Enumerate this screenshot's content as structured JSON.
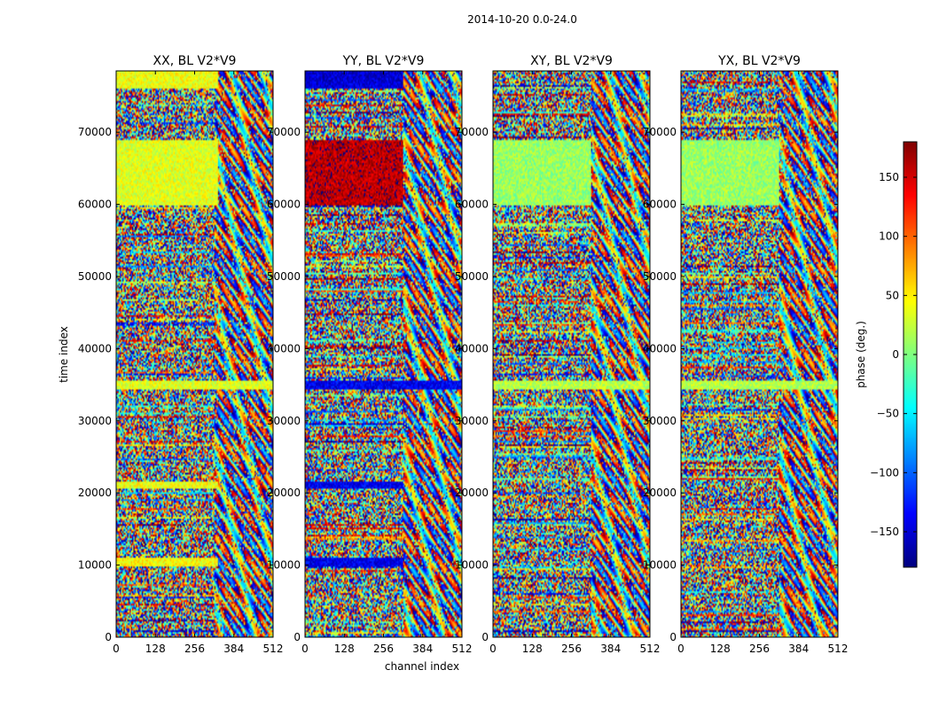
{
  "chart_data": {
    "type": "heatmap",
    "suptitle": "2014-10-20 0.0-24.0",
    "xlabel": "channel index",
    "ylabel": "time index",
    "xlim": [
      0,
      512
    ],
    "ylim": [
      0,
      78500
    ],
    "xticks": [
      0,
      128,
      256,
      384,
      512
    ],
    "yticks": [
      0,
      10000,
      20000,
      30000,
      40000,
      50000,
      60000,
      70000
    ],
    "panels": [
      {
        "title": "XX, BL V2*V9",
        "coherent_bands": [
          {
            "t0": 9800,
            "t1": 11000,
            "phase": 45,
            "ch_max": 330
          },
          {
            "t0": 20500,
            "t1": 21500,
            "phase": 40,
            "ch_max": 330
          },
          {
            "t0": 34300,
            "t1": 35600,
            "phase": 35,
            "ch_max": 512
          },
          {
            "t0": 59800,
            "t1": 69000,
            "phase": 35,
            "ch_max": 330
          },
          {
            "t0": 76000,
            "t1": 78500,
            "phase": 40,
            "ch_max": 330
          }
        ]
      },
      {
        "title": "YY, BL V2*V9",
        "coherent_bands": [
          {
            "t0": 9800,
            "t1": 11000,
            "phase": -140,
            "ch_max": 320
          },
          {
            "t0": 20500,
            "t1": 21500,
            "phase": -140,
            "ch_max": 320
          },
          {
            "t0": 34300,
            "t1": 35600,
            "phase": -140,
            "ch_max": 512
          },
          {
            "t0": 59800,
            "t1": 69000,
            "phase": 160,
            "ch_max": 320
          },
          {
            "t0": 76000,
            "t1": 78500,
            "phase": -150,
            "ch_max": 320
          }
        ]
      },
      {
        "title": "XY, BL V2*V9",
        "coherent_bands": [
          {
            "t0": 34300,
            "t1": 35600,
            "phase": 20,
            "ch_max": 512
          },
          {
            "t0": 59800,
            "t1": 69000,
            "phase": 10,
            "ch_max": 320
          }
        ]
      },
      {
        "title": "YX, BL V2*V9",
        "coherent_bands": [
          {
            "t0": 34300,
            "t1": 35600,
            "phase": 20,
            "ch_max": 512
          },
          {
            "t0": 59800,
            "t1": 69000,
            "phase": 10,
            "ch_max": 320
          }
        ]
      }
    ],
    "colorbar": {
      "label": "phase (deg.)",
      "range": [
        -180,
        180
      ],
      "ticks": [
        -150,
        -100,
        -50,
        0,
        50,
        100,
        150
      ],
      "tick_labels": [
        "−150",
        "−100",
        "−50",
        "0",
        "50",
        "100",
        "150"
      ],
      "colormap": [
        "#00007f",
        "#0000ff",
        "#007fff",
        "#00ffff",
        "#7fff7f",
        "#ffff00",
        "#ff7f00",
        "#ff0000",
        "#7f0000"
      ]
    }
  }
}
